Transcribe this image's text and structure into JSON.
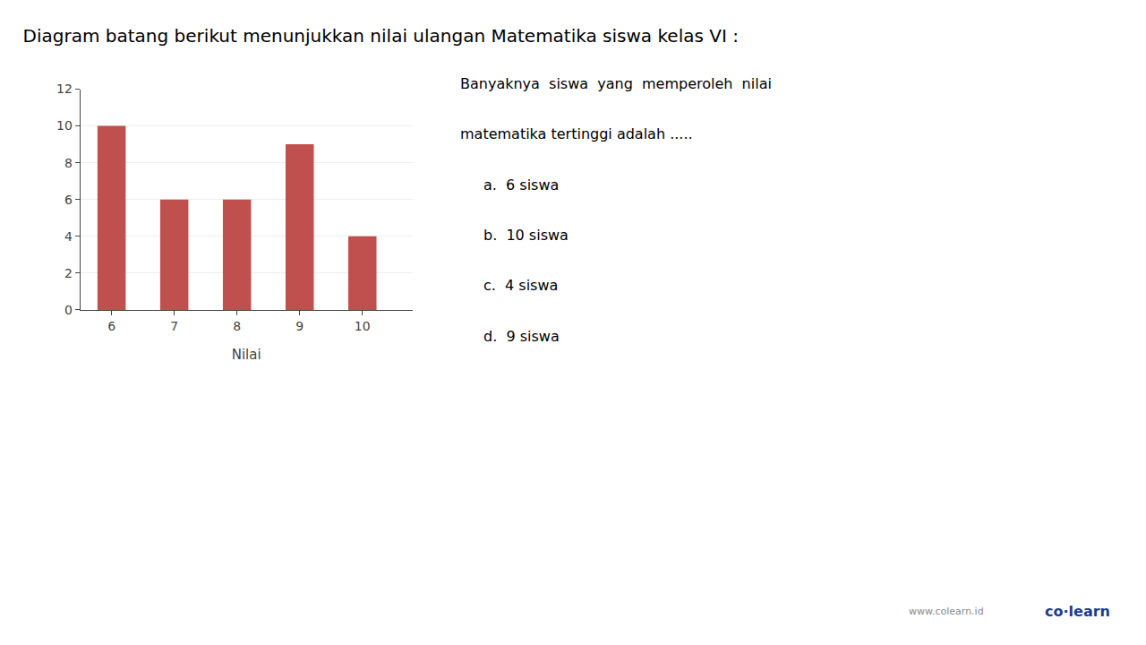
{
  "chart_data": {
    "type": "bar",
    "title": "Diagram batang berikut menunjukkan nilai ulangan Matematika siswa kelas VI :",
    "x": [
      6,
      7,
      8,
      9,
      10
    ],
    "values": [
      10,
      6,
      6,
      9,
      4
    ],
    "color": "#c0504d",
    "xlabel": "Nilai",
    "xlim": [
      5.5,
      10.8
    ],
    "xticks": [
      6,
      7,
      8,
      9,
      10
    ],
    "ylim": [
      0,
      12
    ],
    "yticks": [
      0,
      2,
      4,
      6,
      8,
      10,
      12
    ],
    "grid": true,
    "annotations": [
      "Banyaknya  siswa  yang  memperoleh  nilai",
      "matematika tertinggi adalah .....",
      "a.  6 siswa",
      "b.  10 siswa",
      "c.  4 siswa",
      "d.  9 siswa",
      "co·learn",
      "www.colearn.id"
    ]
  }
}
